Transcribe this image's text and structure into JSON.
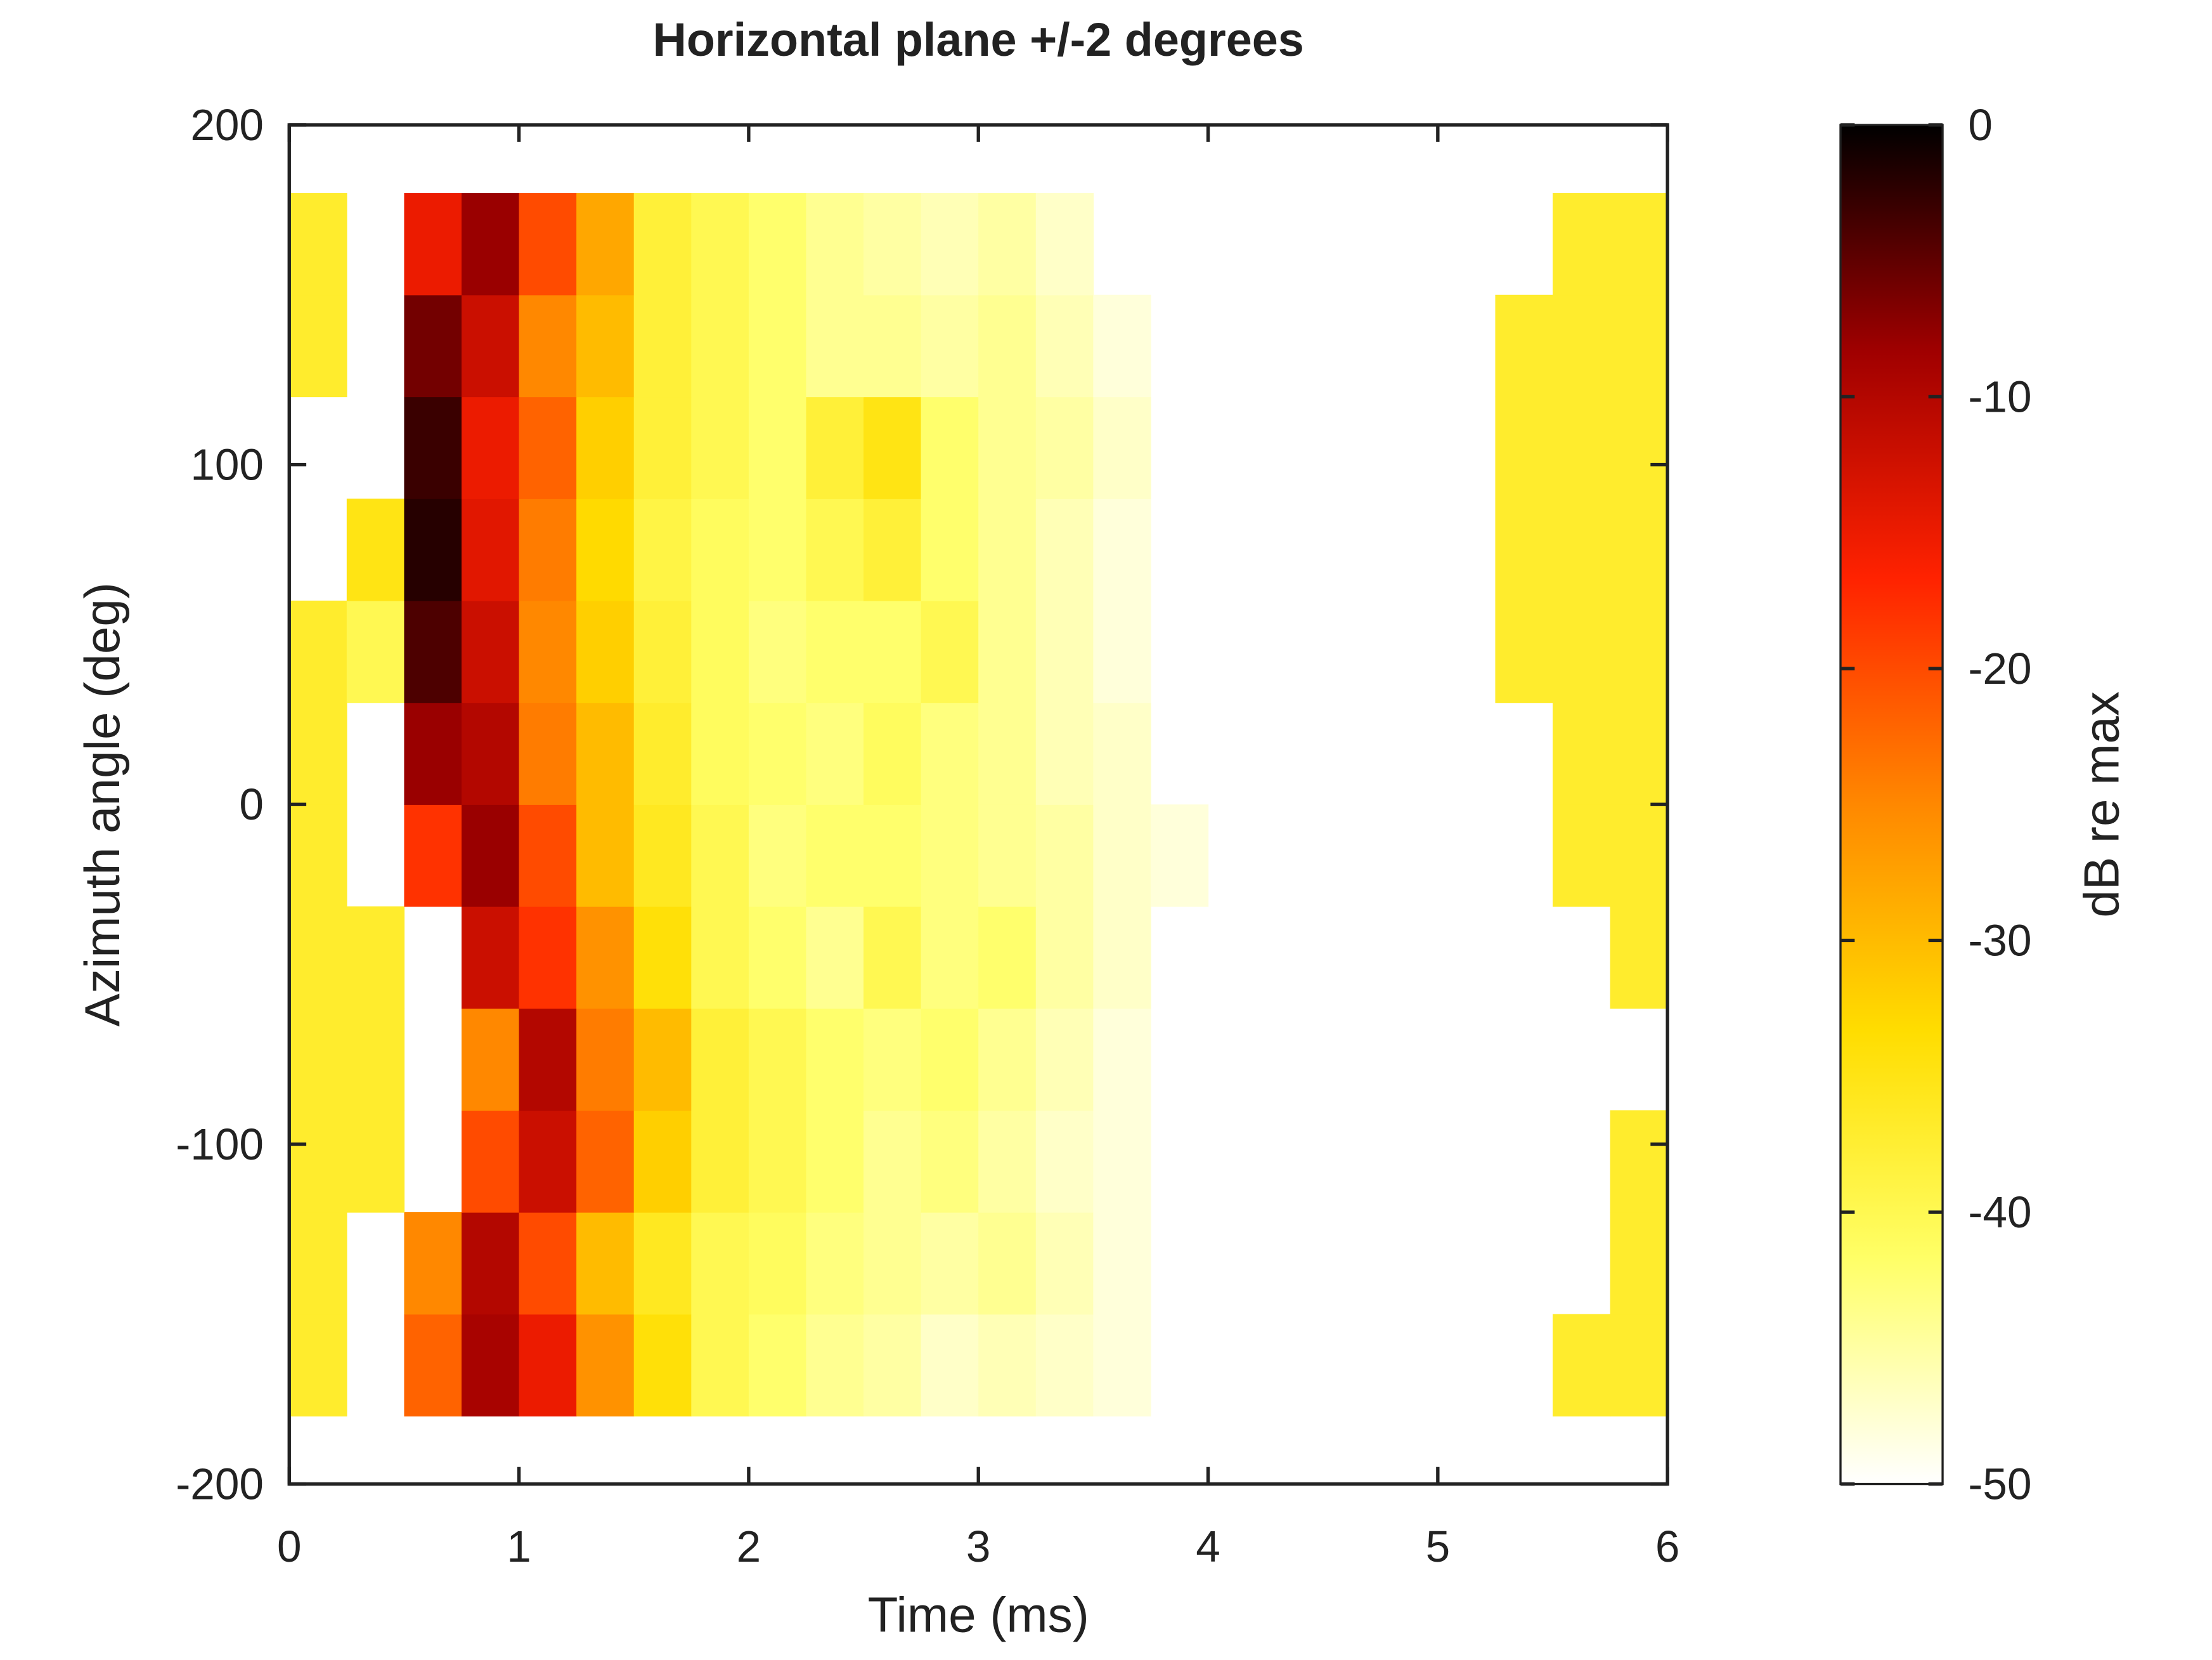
{
  "chart_data": {
    "type": "heatmap",
    "title": "Horizontal plane +/-2 degrees",
    "x_label": "Time (ms)",
    "y_label": "Azimuth angle (deg)",
    "colorbar_label": "dB re max",
    "xlim": [
      0,
      6
    ],
    "xticks": [
      0,
      1,
      2,
      3,
      4,
      5,
      6
    ],
    "ylim": [
      -200,
      200
    ],
    "yticks": [
      -200,
      -100,
      0,
      100,
      200
    ],
    "zlim": [
      -50,
      0
    ],
    "zticks": [
      -50,
      -40,
      -30,
      -20,
      -10,
      0
    ],
    "colormap": [
      "#ffffff",
      "#ffff66",
      "#ffdd00",
      "#ff8800",
      "#ff2200",
      "#a00000",
      "#000000"
    ],
    "x": [
      0.125,
      0.375,
      0.625,
      0.875,
      1.125,
      1.375,
      1.625,
      1.875,
      2.125,
      2.375,
      2.625,
      2.875,
      3.125,
      3.375,
      3.625,
      3.875,
      4.125,
      4.375,
      4.625,
      4.875,
      5.125,
      5.375,
      5.625,
      5.875
    ],
    "y": [
      -165,
      -135,
      -105,
      -75,
      -45,
      -15,
      15,
      45,
      75,
      105,
      135,
      165
    ],
    "z": [
      [
        -37,
        null,
        -22,
        -9,
        -15,
        -26,
        -34,
        -40,
        -42,
        -44,
        -45,
        -47,
        -46,
        -47,
        -48,
        null,
        null,
        null,
        null,
        null,
        null,
        null,
        -37,
        -37
      ],
      [
        -37,
        null,
        -25,
        -10,
        -20,
        -30,
        -36,
        -40,
        -41,
        -43,
        -44,
        -45,
        -44,
        -46,
        -48,
        null,
        null,
        null,
        null,
        null,
        null,
        null,
        null,
        -37
      ],
      [
        -37,
        -37,
        null,
        -20,
        -12,
        -22,
        -32,
        -38,
        -40,
        -42,
        -44,
        -43,
        -45,
        -47,
        -48,
        null,
        null,
        null,
        null,
        null,
        null,
        null,
        null,
        -37
      ],
      [
        -37,
        -37,
        null,
        -25,
        -10,
        -24,
        -30,
        -38,
        -40,
        -42,
        -43,
        -42,
        -44,
        -46,
        -48,
        null,
        null,
        null,
        null,
        null,
        null,
        null,
        null,
        null
      ],
      [
        -37,
        -37,
        null,
        -12,
        -18,
        -26,
        -34,
        -40,
        -42,
        -44,
        -40,
        -43,
        -42,
        -45,
        -47,
        null,
        null,
        null,
        null,
        null,
        null,
        null,
        null,
        -37
      ],
      [
        -37,
        null,
        -18,
        -8,
        -20,
        -30,
        -36,
        -40,
        -43,
        -42,
        -42,
        -43,
        -44,
        -45,
        -47,
        -48,
        null,
        null,
        null,
        null,
        null,
        null,
        -37,
        -37
      ],
      [
        -37,
        null,
        -8,
        -10,
        -24,
        -30,
        -37,
        -41,
        -42,
        -43,
        -41,
        -43,
        -44,
        -46,
        -47,
        null,
        null,
        null,
        null,
        null,
        null,
        null,
        -37,
        -37
      ],
      [
        -37,
        -40,
        -4,
        -12,
        -25,
        -32,
        -38,
        -41,
        -43,
        -42,
        -42,
        -40,
        -44,
        -46,
        -48,
        null,
        null,
        null,
        null,
        null,
        null,
        -37,
        -37,
        -37
      ],
      [
        null,
        -35,
        -2,
        -14,
        -24,
        -33,
        -39,
        -41,
        -42,
        -40,
        -38,
        -42,
        -44,
        -46,
        -48,
        null,
        null,
        null,
        null,
        null,
        null,
        -37,
        -37,
        -37
      ],
      [
        null,
        null,
        -3,
        -15,
        -22,
        -32,
        -38,
        -40,
        -42,
        -38,
        -35,
        -42,
        -44,
        -45,
        -47,
        null,
        null,
        null,
        null,
        null,
        null,
        -37,
        -37,
        -37
      ],
      [
        -37,
        null,
        -6,
        -12,
        -25,
        -30,
        -38,
        -40,
        -42,
        -44,
        -44,
        -45,
        -44,
        -46,
        -48,
        null,
        null,
        null,
        null,
        null,
        null,
        -37,
        -37,
        -37
      ],
      [
        -37,
        null,
        -15,
        -8,
        -20,
        -28,
        -38,
        -40,
        -42,
        -44,
        -45,
        -46,
        -45,
        -47,
        null,
        null,
        null,
        null,
        null,
        null,
        null,
        null,
        -37,
        -37
      ]
    ]
  }
}
